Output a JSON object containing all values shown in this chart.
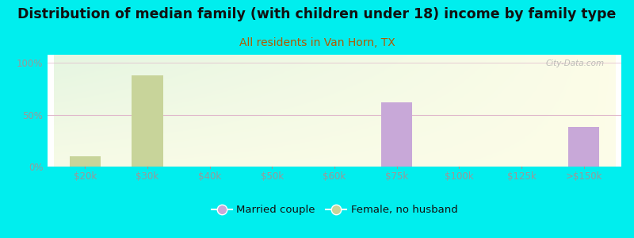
{
  "title": "Distribution of median family (with children under 18) income by family type",
  "subtitle": "All residents in Van Horn, TX",
  "categories": [
    "$20k",
    "$30k",
    "$40k",
    "$50k",
    "$60k",
    "$75k",
    "$100k",
    "$125k",
    ">$150k"
  ],
  "female_no_husband": [
    10,
    88,
    0,
    0,
    0,
    0,
    0,
    0,
    0
  ],
  "married_couple": [
    0,
    0,
    0,
    0,
    0,
    62,
    0,
    0,
    38
  ],
  "female_color": "#c8d49a",
  "married_color": "#c8a8d8",
  "bg_outer": "#00EEEE",
  "title_color": "#111111",
  "subtitle_color": "#b05a00",
  "axis_color": "#999999",
  "grid_color50": "#e0b8cc",
  "yticks": [
    0,
    50,
    100
  ],
  "ylim": [
    0,
    108
  ],
  "title_fontsize": 12.5,
  "subtitle_fontsize": 10,
  "tick_fontsize": 8.5,
  "legend_fontsize": 9.5,
  "bar_width": 0.5,
  "watermark": "City-Data.com"
}
